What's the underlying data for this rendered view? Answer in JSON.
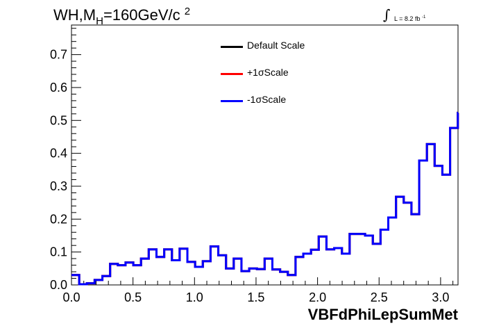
{
  "title": {
    "main": "WH,M",
    "sub": "H",
    "rest": "=160GeV/c",
    "sup": "2"
  },
  "lumi": {
    "integral": "∫",
    "text": "L = 8.2 fb",
    "sup": "-1"
  },
  "legend": [
    {
      "label": "Default Scale",
      "color": "#000000"
    },
    {
      "label": "+1σScale",
      "color": "#ff0000"
    },
    {
      "label": "-1σScale",
      "color": "#0000ff"
    }
  ],
  "chart_data": {
    "type": "line",
    "style": "step histogram",
    "xlabel": "VBFdPhiLepSumMet",
    "ylabel": "",
    "xlim": [
      0,
      3.1416
    ],
    "ylim": [
      0,
      0.79
    ],
    "xticks": [
      "0.0",
      "0.5",
      "1.0",
      "1.5",
      "2.0",
      "2.5",
      "3.0"
    ],
    "yticks": [
      "0.0",
      "0.1",
      "0.2",
      "0.3",
      "0.4",
      "0.5",
      "0.6",
      "0.7"
    ],
    "bin_width": 0.0628,
    "series": [
      {
        "name": "Default Scale",
        "color": "#000000",
        "values": [
          0.03,
          0.002,
          0.005,
          0.015,
          0.027,
          0.064,
          0.06,
          0.068,
          0.06,
          0.08,
          0.108,
          0.085,
          0.108,
          0.075,
          0.11,
          0.07,
          0.055,
          0.072,
          0.117,
          0.09,
          0.05,
          0.08,
          0.042,
          0.05,
          0.048,
          0.08,
          0.047,
          0.04,
          0.03,
          0.085,
          0.095,
          0.107,
          0.147,
          0.108,
          0.112,
          0.095,
          0.155,
          0.155,
          0.15,
          0.125,
          0.168,
          0.205,
          0.268,
          0.25,
          0.215,
          0.378,
          0.428,
          0.362,
          0.335,
          0.477,
          0.523
        ]
      },
      {
        "name": "+1σScale",
        "color": "#ff0000",
        "values": [
          0.03,
          0.002,
          0.005,
          0.015,
          0.027,
          0.064,
          0.06,
          0.068,
          0.06,
          0.08,
          0.108,
          0.085,
          0.108,
          0.075,
          0.11,
          0.07,
          0.055,
          0.072,
          0.117,
          0.09,
          0.05,
          0.08,
          0.042,
          0.05,
          0.048,
          0.08,
          0.047,
          0.04,
          0.03,
          0.085,
          0.095,
          0.107,
          0.147,
          0.108,
          0.112,
          0.095,
          0.155,
          0.155,
          0.15,
          0.125,
          0.168,
          0.205,
          0.268,
          0.25,
          0.215,
          0.378,
          0.428,
          0.362,
          0.335,
          0.477,
          0.523
        ]
      },
      {
        "name": "-1σScale",
        "color": "#0000ff",
        "values": [
          0.03,
          0.002,
          0.005,
          0.015,
          0.027,
          0.064,
          0.06,
          0.068,
          0.06,
          0.08,
          0.108,
          0.085,
          0.108,
          0.075,
          0.11,
          0.07,
          0.055,
          0.072,
          0.117,
          0.09,
          0.05,
          0.08,
          0.042,
          0.05,
          0.048,
          0.08,
          0.047,
          0.04,
          0.03,
          0.085,
          0.095,
          0.107,
          0.147,
          0.108,
          0.112,
          0.095,
          0.155,
          0.155,
          0.15,
          0.125,
          0.168,
          0.205,
          0.268,
          0.25,
          0.215,
          0.378,
          0.428,
          0.362,
          0.335,
          0.477,
          0.523
        ]
      }
    ],
    "grid": false,
    "legend_position": "top-center"
  }
}
